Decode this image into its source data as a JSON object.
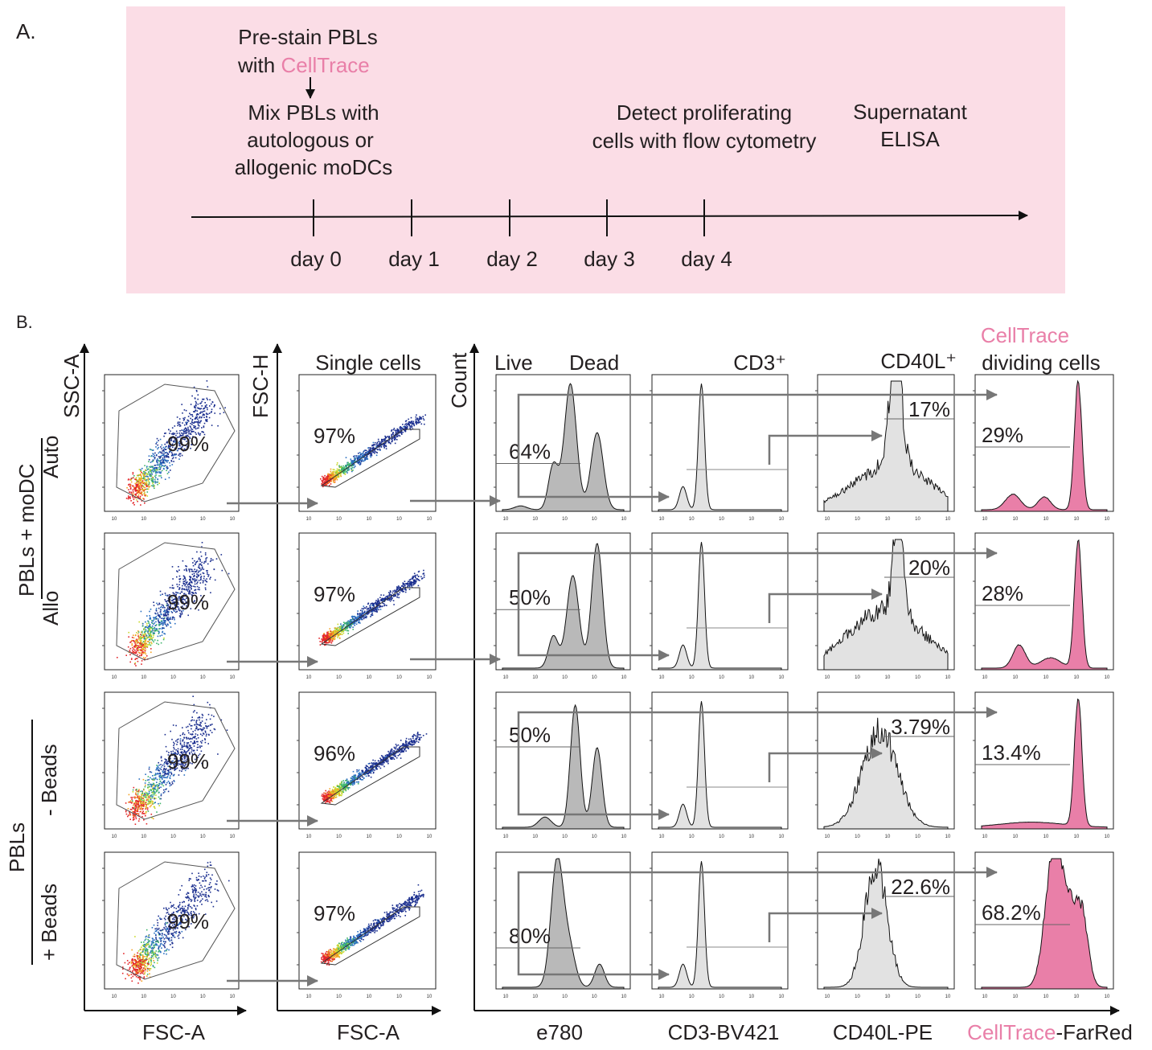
{
  "panel_a": {
    "label": "A.",
    "background": "#fbdde6",
    "step_prestain_line1": "Pre-stain PBLs",
    "step_prestain_with": "with ",
    "step_prestain_dye": "CellTrace",
    "step_mix_line1": "Mix PBLs with",
    "step_mix_line2": "autologous or",
    "step_mix_line3": "allogenic moDCs",
    "step_detect_line1": "Detect proliferating",
    "step_detect_line2": "cells with flow cytometry",
    "step_elisa_line1": "Supernatant",
    "step_elisa_line2": "ELISA",
    "days": [
      "day 0",
      "day 1",
      "day 2",
      "day 3",
      "day 4"
    ]
  },
  "panel_b": {
    "label": "B.",
    "accent_pink": "#e97fa8",
    "y_axis_labels": {
      "scatter": "SSC-A",
      "singlet": "FSC-H",
      "hist": "Count"
    },
    "x_axis_labels": {
      "scatter": "FSC-A",
      "singlet": "FSC-A",
      "live": "e780",
      "cd3": "CD3-BV421",
      "cd40l": "CD40L-PE",
      "celltrace_dye": "CellTrace",
      "celltrace_suffix": "-FarRed"
    },
    "column_titles": {
      "singlet": "Single cells",
      "live": "Live",
      "dead": "Dead",
      "cd3": "CD3⁺",
      "cd40l": "CD40L⁺",
      "celltrace_dye": "CellTrace",
      "celltrace_sub": "dividing cells"
    },
    "groups": [
      {
        "label": "PBLs + moDC"
      },
      {
        "label": "PBLs"
      }
    ],
    "rows": [
      {
        "label": "Auto",
        "scatter_pct": "99%",
        "singlet_pct": "97%",
        "live_pct": "64%",
        "cd40l_pct": "17%",
        "dividing_pct": "29%"
      },
      {
        "label": "Allo",
        "scatter_pct": "99%",
        "singlet_pct": "97%",
        "live_pct": "50%",
        "cd40l_pct": "20%",
        "dividing_pct": "28%"
      },
      {
        "label": "- Beads",
        "scatter_pct": "99%",
        "singlet_pct": "96%",
        "live_pct": "50%",
        "cd40l_pct": "3.79%",
        "dividing_pct": "13.4%"
      },
      {
        "label": "+ Beads",
        "scatter_pct": "99%",
        "singlet_pct": "97%",
        "live_pct": "80%",
        "cd40l_pct": "22.6%",
        "dividing_pct": "68.2%"
      }
    ]
  }
}
